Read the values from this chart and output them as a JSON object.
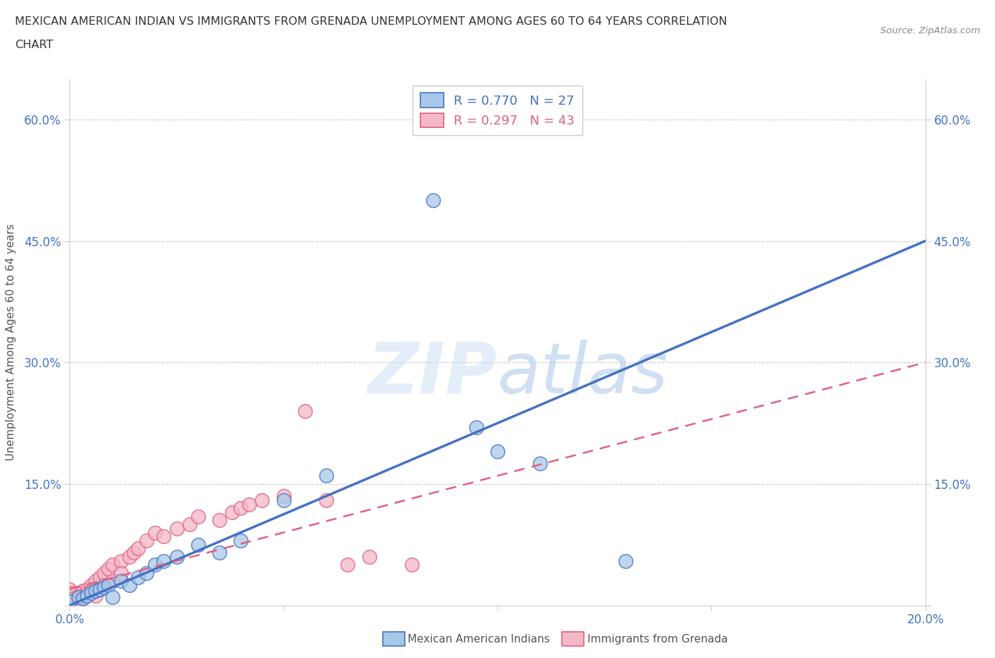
{
  "title_line1": "MEXICAN AMERICAN INDIAN VS IMMIGRANTS FROM GRENADA UNEMPLOYMENT AMONG AGES 60 TO 64 YEARS CORRELATION",
  "title_line2": "CHART",
  "source": "Source: ZipAtlas.com",
  "ylabel": "Unemployment Among Ages 60 to 64 years",
  "xlim": [
    0.0,
    0.2
  ],
  "ylim": [
    0.0,
    0.65
  ],
  "xticks": [
    0.0,
    0.05,
    0.1,
    0.15,
    0.2
  ],
  "yticks": [
    0.0,
    0.15,
    0.3,
    0.45,
    0.6
  ],
  "r_blue": 0.77,
  "n_blue": 27,
  "r_pink": 0.297,
  "n_pink": 43,
  "blue_color": "#a8c8e8",
  "pink_color": "#f4b8c8",
  "blue_edge_color": "#4472c4",
  "pink_edge_color": "#e06080",
  "blue_line_color": "#4472c4",
  "pink_line_color": "#e06080",
  "watermark_color": "#ddeeff",
  "legend_label_blue": "Mexican American Indians",
  "legend_label_pink": "Immigrants from Grenada",
  "blue_x": [
    0.0,
    0.002,
    0.003,
    0.004,
    0.005,
    0.006,
    0.007,
    0.008,
    0.009,
    0.01,
    0.012,
    0.014,
    0.016,
    0.018,
    0.02,
    0.022,
    0.025,
    0.03,
    0.035,
    0.04,
    0.05,
    0.06,
    0.085,
    0.095,
    0.1,
    0.11,
    0.13
  ],
  "blue_y": [
    0.005,
    0.01,
    0.008,
    0.012,
    0.015,
    0.018,
    0.02,
    0.022,
    0.025,
    0.01,
    0.03,
    0.025,
    0.035,
    0.04,
    0.05,
    0.055,
    0.06,
    0.075,
    0.065,
    0.08,
    0.13,
    0.16,
    0.5,
    0.22,
    0.19,
    0.175,
    0.055
  ],
  "pink_x": [
    0.0,
    0.0,
    0.001,
    0.001,
    0.002,
    0.002,
    0.003,
    0.003,
    0.004,
    0.004,
    0.005,
    0.005,
    0.006,
    0.006,
    0.007,
    0.007,
    0.008,
    0.008,
    0.009,
    0.01,
    0.01,
    0.012,
    0.012,
    0.014,
    0.015,
    0.016,
    0.018,
    0.02,
    0.022,
    0.025,
    0.028,
    0.03,
    0.035,
    0.038,
    0.04,
    0.042,
    0.045,
    0.05,
    0.055,
    0.06,
    0.065,
    0.07,
    0.08
  ],
  "pink_y": [
    0.02,
    0.01,
    0.015,
    0.008,
    0.012,
    0.005,
    0.018,
    0.01,
    0.02,
    0.015,
    0.025,
    0.018,
    0.03,
    0.012,
    0.035,
    0.02,
    0.04,
    0.025,
    0.045,
    0.05,
    0.03,
    0.055,
    0.04,
    0.06,
    0.065,
    0.07,
    0.08,
    0.09,
    0.085,
    0.095,
    0.1,
    0.11,
    0.105,
    0.115,
    0.12,
    0.125,
    0.13,
    0.135,
    0.24,
    0.13,
    0.05,
    0.06,
    0.05
  ],
  "blue_line_x0": 0.0,
  "blue_line_y0": 0.0,
  "blue_line_x1": 0.2,
  "blue_line_y1": 0.45,
  "pink_line_x0": 0.0,
  "pink_line_y0": 0.02,
  "pink_line_x1": 0.2,
  "pink_line_y1": 0.3
}
